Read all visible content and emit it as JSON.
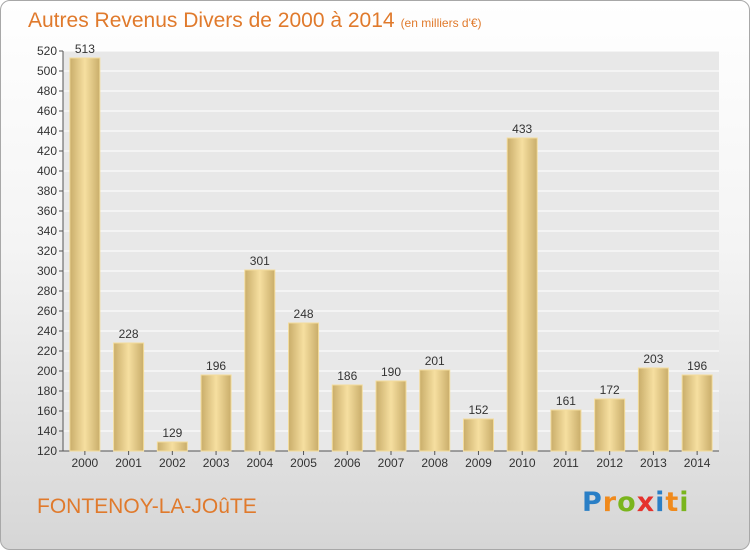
{
  "title": "Autres Revenus Divers de 2000 à 2014",
  "unit_label": "(en milliers d'€)",
  "commune": "FONTENOY-LA-JOûTE",
  "brand": {
    "letters": [
      "P",
      "r",
      "o",
      "x",
      "i",
      "t",
      "i"
    ],
    "colors": [
      "#2a7fc6",
      "#f08a1c",
      "#7ab51d",
      "#e5322d",
      "#2a7fc6",
      "#f08a1c",
      "#7ab51d"
    ]
  },
  "colors": {
    "title": "#e07a2c",
    "bar_light": "#f6dfa0",
    "bar_dark": "#c9ad6a",
    "grid": "#ffffff",
    "plot_bg": "#e8e8e8"
  },
  "chart_data": {
    "type": "bar",
    "title": "Autres Revenus Divers de 2000 à 2014",
    "categories": [
      "2000",
      "2001",
      "2002",
      "2003",
      "2004",
      "2005",
      "2006",
      "2007",
      "2008",
      "2009",
      "2010",
      "2011",
      "2012",
      "2013",
      "2014"
    ],
    "values": [
      513,
      228,
      129,
      196,
      301,
      248,
      186,
      190,
      201,
      152,
      433,
      161,
      172,
      203,
      196
    ],
    "ylim": [
      120,
      520
    ],
    "ytick_step": 20,
    "grid": true,
    "legend": "none"
  }
}
